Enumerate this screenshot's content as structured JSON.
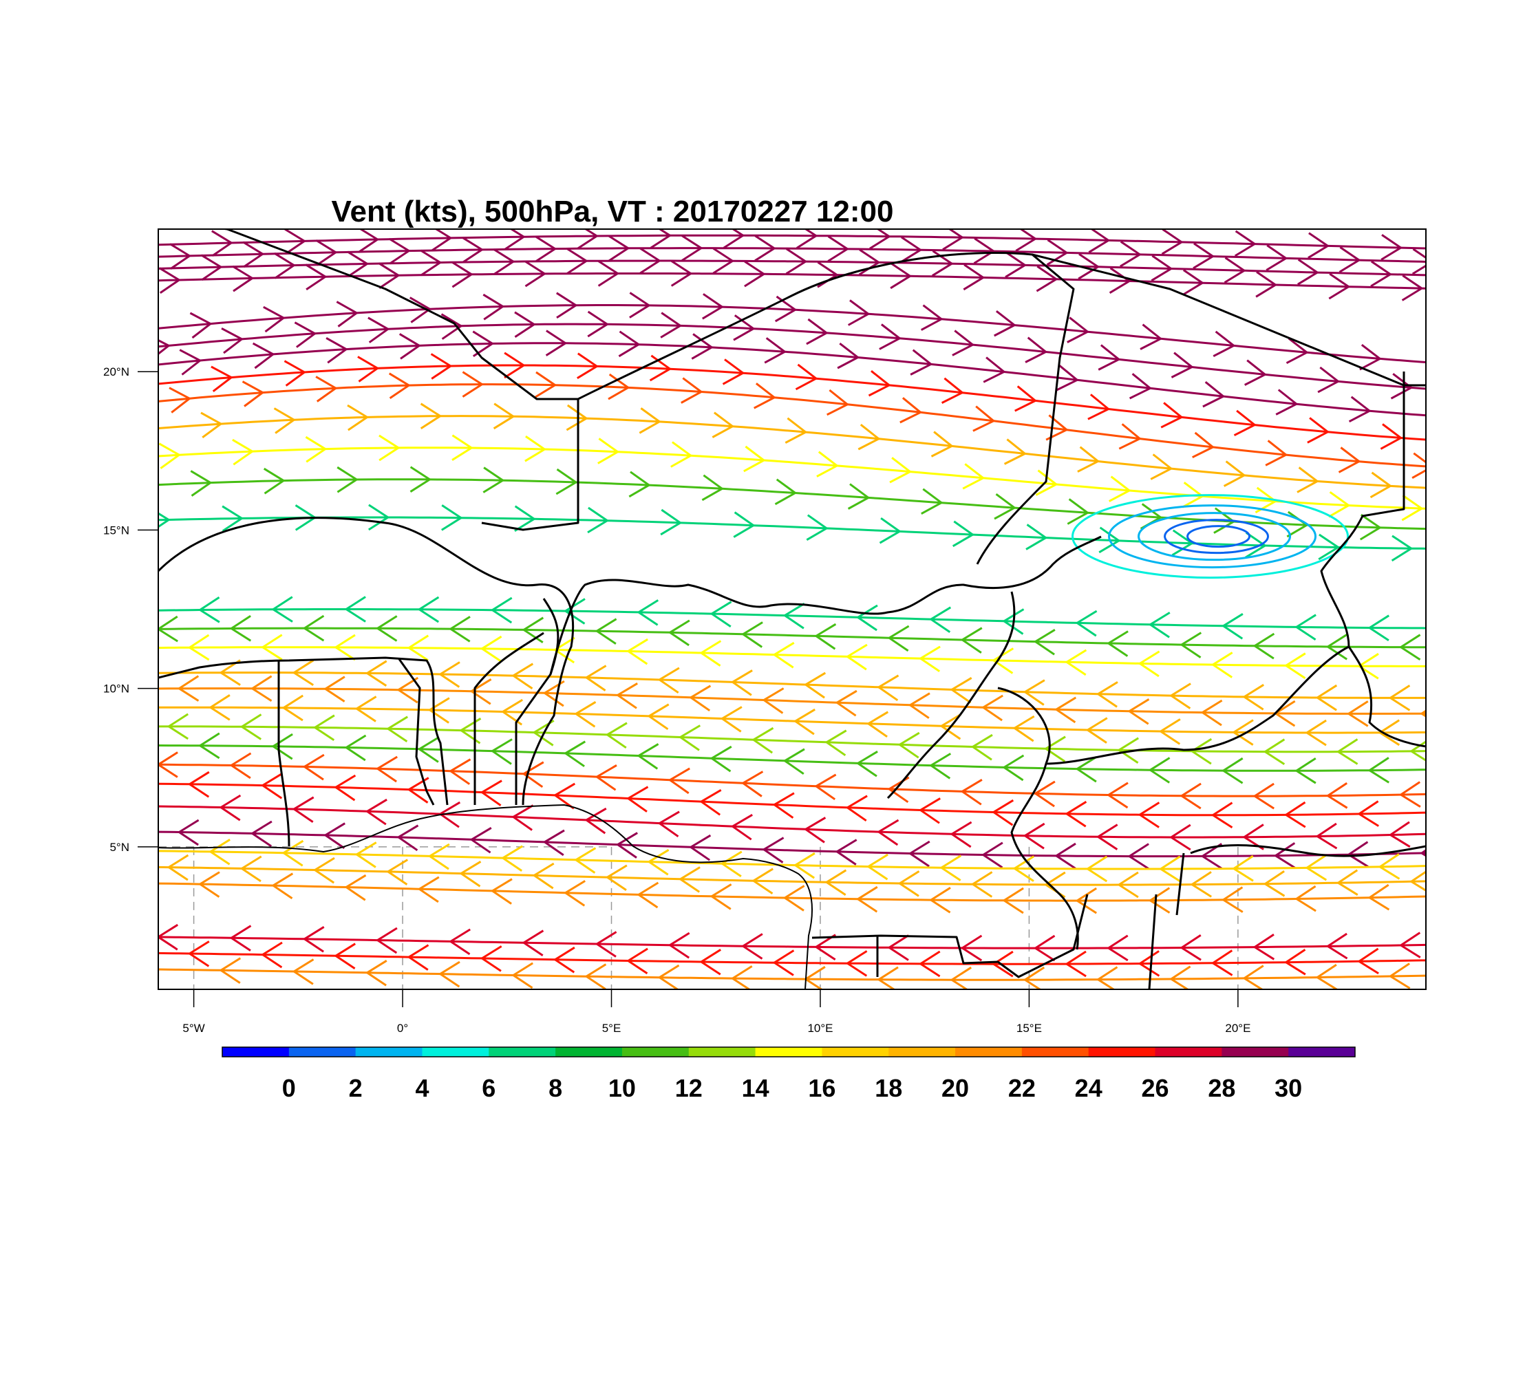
{
  "title": "Vent (kts), 500hPa, VT : 20170227  12:00",
  "map": {
    "lon_range": [
      -5.85,
      24.5
    ],
    "lat_range": [
      0.5,
      24.5
    ],
    "x_ticks": [
      {
        "value": -5,
        "label": "5°W"
      },
      {
        "value": 0,
        "label": "0°"
      },
      {
        "value": 5,
        "label": "5°E"
      },
      {
        "value": 10,
        "label": "10°E"
      },
      {
        "value": 15,
        "label": "15°E"
      },
      {
        "value": 20,
        "label": "20°E"
      }
    ],
    "y_ticks": [
      {
        "value": 5,
        "label": "5°N"
      },
      {
        "value": 10,
        "label": "10°N"
      },
      {
        "value": 15,
        "label": "15°N"
      },
      {
        "value": 20,
        "label": "20°N"
      }
    ]
  },
  "colorbar": {
    "colors": [
      "#0000ff",
      "#0a64f0",
      "#00b4f0",
      "#00f0dc",
      "#00d278",
      "#00b432",
      "#46be14",
      "#96dc0a",
      "#ffff00",
      "#ffd200",
      "#ffb400",
      "#ff8c00",
      "#ff5000",
      "#ff1400",
      "#dc0028",
      "#960050",
      "#5a0096"
    ],
    "labels": [
      "0",
      "2",
      "4",
      "6",
      "8",
      "10",
      "12",
      "14",
      "16",
      "18",
      "20",
      "22",
      "24",
      "26",
      "28",
      "30"
    ]
  },
  "streamlines": [
    {
      "lat": 24.0,
      "amp": 0.3,
      "speed": 31,
      "dir": "E"
    },
    {
      "lat": 23.6,
      "amp": 0.3,
      "speed": 31,
      "dir": "E"
    },
    {
      "lat": 23.2,
      "amp": 0.3,
      "speed": 31,
      "dir": "E"
    },
    {
      "lat": 22.8,
      "amp": 0.3,
      "speed": 31,
      "dir": "E"
    },
    {
      "lat": 21.0,
      "amp": 1.1,
      "speed": 31,
      "dir": "E"
    },
    {
      "lat": 20.3,
      "amp": 1.2,
      "speed": 31,
      "dir": "E"
    },
    {
      "lat": 19.6,
      "amp": 1.3,
      "speed": 30,
      "dir": "E"
    },
    {
      "lat": 18.9,
      "amp": 1.3,
      "speed": 27,
      "dir": "E"
    },
    {
      "lat": 18.2,
      "amp": 1.4,
      "speed": 25,
      "dir": "E"
    },
    {
      "lat": 17.4,
      "amp": 1.2,
      "speed": 20,
      "dir": "E"
    },
    {
      "lat": 16.6,
      "amp": 1.0,
      "speed": 17,
      "dir": "E"
    },
    {
      "lat": 15.8,
      "amp": 0.8,
      "speed": 12,
      "dir": "E"
    },
    {
      "lat": 14.9,
      "amp": 0.5,
      "speed": 8,
      "dir": "E"
    },
    {
      "lat": 12.2,
      "amp": 0.3,
      "speed": 9,
      "dir": "W"
    },
    {
      "lat": 11.6,
      "amp": 0.3,
      "speed": 13,
      "dir": "W"
    },
    {
      "lat": 11.0,
      "amp": 0.3,
      "speed": 16,
      "dir": "W"
    },
    {
      "lat": 10.1,
      "amp": 0.4,
      "speed": 21,
      "dir": "W"
    },
    {
      "lat": 9.6,
      "amp": 0.4,
      "speed": 23,
      "dir": "W"
    },
    {
      "lat": 9.0,
      "amp": 0.4,
      "speed": 20,
      "dir": "W"
    },
    {
      "lat": 8.4,
      "amp": 0.4,
      "speed": 14,
      "dir": "W"
    },
    {
      "lat": 7.8,
      "amp": 0.4,
      "speed": 12,
      "dir": "W"
    },
    {
      "lat": 7.1,
      "amp": 0.5,
      "speed": 25,
      "dir": "W"
    },
    {
      "lat": 6.5,
      "amp": 0.5,
      "speed": 27,
      "dir": "W"
    },
    {
      "lat": 5.8,
      "amp": 0.5,
      "speed": 29,
      "dir": "W"
    },
    {
      "lat": 5.1,
      "amp": 0.4,
      "speed": 31,
      "dir": "W"
    },
    {
      "lat": 4.6,
      "amp": 0.3,
      "speed": 19,
      "dir": "W"
    },
    {
      "lat": 4.1,
      "amp": 0.3,
      "speed": 21,
      "dir": "W"
    },
    {
      "lat": 3.6,
      "amp": 0.3,
      "speed": 22,
      "dir": "W"
    },
    {
      "lat": 2.0,
      "amp": 0.2,
      "speed": 29,
      "dir": "W"
    },
    {
      "lat": 1.5,
      "amp": 0.2,
      "speed": 26,
      "dir": "W"
    },
    {
      "lat": 1.0,
      "amp": 0.2,
      "speed": 23,
      "dir": "W"
    }
  ]
}
